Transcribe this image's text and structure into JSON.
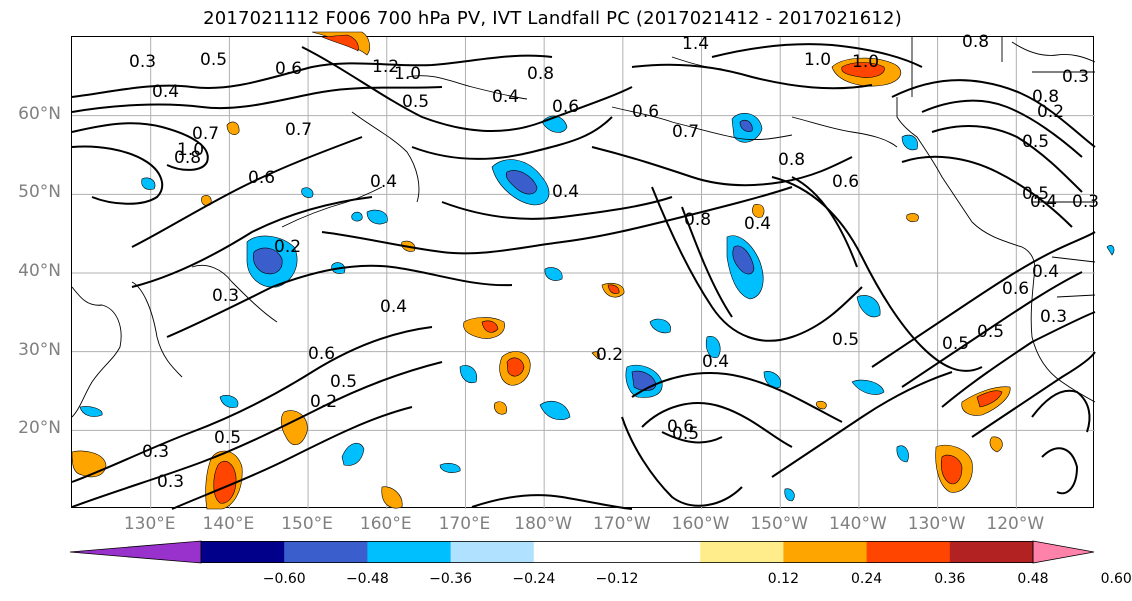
{
  "title": "2017021112 F006 700 hPa PV, IVT Landfall PC (2017021412 - 2017021612)",
  "lat_labels": [
    {
      "text": "60°N",
      "lat": 60
    },
    {
      "text": "50°N",
      "lat": 50
    },
    {
      "text": "40°N",
      "lat": 40
    },
    {
      "text": "30°N",
      "lat": 30
    },
    {
      "text": "20°N",
      "lat": 20
    }
  ],
  "lon_labels": [
    {
      "text": "130°E",
      "lon": 130
    },
    {
      "text": "140°E",
      "lon": 140
    },
    {
      "text": "150°E",
      "lon": 150
    },
    {
      "text": "160°E",
      "lon": 160
    },
    {
      "text": "170°E",
      "lon": 170
    },
    {
      "text": "180°W",
      "lon": 180
    },
    {
      "text": "170°W",
      "lon": 190
    },
    {
      "text": "160°W",
      "lon": 200
    },
    {
      "text": "150°W",
      "lon": 210
    },
    {
      "text": "140°W",
      "lon": 220
    },
    {
      "text": "130°W",
      "lon": 230
    },
    {
      "text": "120°W",
      "lon": 240
    }
  ],
  "contour_labels": [
    "0.3",
    "0.5",
    "0.6",
    "1.2",
    "1.0",
    "0.8",
    "1.4",
    "1.0",
    "0.8",
    "0.4",
    "0.7",
    "0.8",
    "1.0",
    "0.7",
    "0.6",
    "0.5",
    "0.4",
    "0.6",
    "0.4",
    "0.8",
    "0.8",
    "0.4",
    "0.4",
    "0.3",
    "0.4",
    "0.2",
    "0.6",
    "0.5",
    "0.2",
    "0.4",
    "0.2",
    "0.6",
    "0.5",
    "0.5",
    "0.5",
    "0.6",
    "0.4",
    "0.3",
    "0.5",
    "0.2",
    "0.3",
    "0.5",
    "0.5",
    "0.3",
    "0.3",
    "0.8",
    "0.5",
    "0.4",
    "0.3",
    "1.0",
    "0.7",
    "0.6",
    "0.6"
  ],
  "colorbar": {
    "colors": [
      "#9932cc",
      "#00008b",
      "#3a5fcd",
      "#00bfff",
      "#b0e2ff",
      "#ffffff",
      "#ffffff",
      "#ffec8b",
      "#ffa500",
      "#ff4500",
      "#b22222",
      "#ff82ab"
    ],
    "ticks": [
      "−0.60",
      "−0.48",
      "−0.36",
      "−0.24",
      "−0.12",
      "0.12",
      "0.24",
      "0.36",
      "0.48",
      "0.60"
    ]
  },
  "map_extent": {
    "lon_min": 120,
    "lon_max": 250,
    "lat_min": 10,
    "lat_max": 70
  }
}
